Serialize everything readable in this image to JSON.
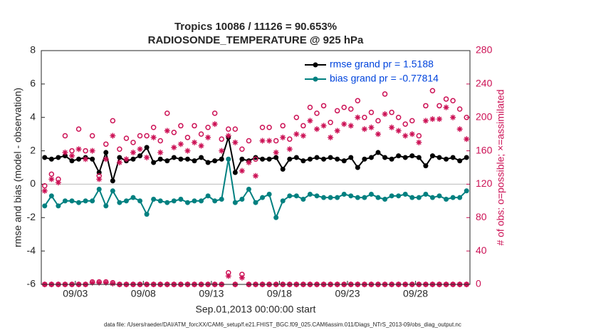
{
  "chart_data": {
    "type": "line",
    "title": "Tropics 10086 / 11126 = 90.653%",
    "subtitle": "RADIOSONDE_TEMPERATURE @ 925 hPa",
    "xlabel": "Sep.01,2013 00:00:00 start",
    "ylabel": "rmse and bias (model - observation)",
    "y2label": "# of obs: o=possible; ×=assimilated",
    "footnote": "data file: /Users/raeder/DAI/ATM_forcXX/CAM6_setup/f.e21.FHIST_BGC.f09_025.CAM6assim.011/Diags_NTrS_2013-09/obs_diag_output.nc",
    "legend": "upper right",
    "xlim": [
      0.5,
      32
    ],
    "xticks": [
      {
        "value": 3,
        "label": "09/03"
      },
      {
        "value": 8,
        "label": "09/08"
      },
      {
        "value": 13,
        "label": "09/13"
      },
      {
        "value": 18,
        "label": "09/18"
      },
      {
        "value": 23,
        "label": "09/23"
      },
      {
        "value": 28,
        "label": "09/28"
      }
    ],
    "ylim": [
      -6,
      8
    ],
    "yticks": [
      -6,
      -4,
      -2,
      0,
      2,
      4,
      6,
      8
    ],
    "y2lim": [
      0,
      280
    ],
    "y2ticks": [
      0,
      40,
      80,
      120,
      160,
      200,
      240,
      280
    ],
    "x": [
      0.75,
      1.25,
      1.75,
      2.25,
      2.75,
      3.25,
      3.75,
      4.25,
      4.75,
      5.25,
      5.75,
      6.25,
      6.75,
      7.25,
      7.75,
      8.25,
      8.75,
      9.25,
      9.75,
      10.25,
      10.75,
      11.25,
      11.75,
      12.25,
      12.75,
      13.25,
      13.75,
      14.25,
      14.75,
      15.25,
      15.75,
      16.25,
      16.75,
      17.25,
      17.75,
      18.25,
      18.75,
      19.25,
      19.75,
      20.25,
      20.75,
      21.25,
      21.75,
      22.25,
      22.75,
      23.25,
      23.75,
      24.25,
      24.75,
      25.25,
      25.75,
      26.25,
      26.75,
      27.25,
      27.75,
      28.25,
      28.75,
      29.25,
      29.75,
      30.25,
      30.75,
      31.25,
      31.75
    ],
    "series": [
      {
        "name": "rmse grand pr = 1.5188",
        "color": "#000000",
        "marker": "line-dot",
        "legend_color": "#0044dd",
        "values": [
          1.6,
          1.5,
          1.6,
          1.7,
          1.4,
          1.5,
          1.6,
          1.5,
          0.7,
          1.9,
          0.2,
          1.6,
          1.4,
          1.5,
          1.7,
          2.2,
          1.3,
          1.5,
          1.4,
          1.6,
          1.5,
          1.5,
          1.4,
          1.6,
          1.3,
          1.4,
          1.5,
          2.8,
          0.7,
          1.5,
          1.4,
          1.6,
          1.5,
          1.5,
          1.6,
          0.9,
          1.5,
          1.6,
          1.4,
          1.5,
          1.6,
          1.5,
          1.6,
          1.5,
          1.4,
          1.6,
          1.0,
          1.5,
          1.6,
          1.9,
          1.6,
          1.5,
          1.7,
          1.6,
          1.7,
          1.6,
          1.1,
          1.7,
          1.6,
          1.5,
          1.6,
          1.4,
          1.6
        ]
      },
      {
        "name": "bias grand pr = -0.77814",
        "color": "#008080",
        "marker": "line-dot",
        "legend_color": "#0044dd",
        "values": [
          -1.3,
          -0.7,
          -1.3,
          -1.0,
          -1.0,
          -1.1,
          -1.0,
          -1.0,
          -0.3,
          -1.3,
          -0.4,
          -1.1,
          -1.0,
          -0.8,
          -1.0,
          -1.8,
          -0.9,
          -1.0,
          -1.1,
          -1.0,
          -0.9,
          -1.1,
          -1.0,
          -1.0,
          -0.7,
          -1.0,
          -0.9,
          1.5,
          -1.1,
          -0.9,
          -0.3,
          -1.1,
          -0.8,
          -0.6,
          -2.0,
          -1.0,
          -0.7,
          -0.7,
          -0.9,
          -0.6,
          -0.7,
          -0.8,
          -0.8,
          -0.8,
          -0.6,
          -0.7,
          -0.8,
          -0.8,
          -0.6,
          -0.8,
          -0.9,
          -0.7,
          -0.7,
          -0.6,
          -0.8,
          -0.8,
          -0.6,
          -0.8,
          -0.7,
          -0.9,
          -0.8,
          -0.8,
          -0.4
        ]
      },
      {
        "color": "#cc1155",
        "marker": "circle",
        "axis": "y2",
        "values": [
          118,
          132,
          126,
          178,
          160,
          186,
          160,
          178,
          130,
          168,
          196,
          162,
          175,
          170,
          178,
          178,
          188,
          172,
          205,
          182,
          190,
          176,
          190,
          180,
          188,
          205,
          174,
          186,
          186,
          162,
          172,
          150,
          188,
          188,
          172,
          190,
          174,
          200,
          190,
          212,
          205,
          214,
          194,
          208,
          212,
          210,
          220,
          200,
          206,
          196,
          228,
          206,
          200,
          192,
          196,
          178,
          214,
          232,
          214,
          222,
          220,
          210,
          200
        ]
      },
      {
        "color": "#cc1155",
        "marker": "asterisk",
        "axis": "y2",
        "values": [
          112,
          126,
          122,
          158,
          154,
          162,
          150,
          160,
          126,
          150,
          178,
          146,
          150,
          158,
          162,
          152,
          176,
          158,
          184,
          164,
          168,
          160,
          170,
          166,
          176,
          192,
          160,
          178,
          170,
          136,
          146,
          130,
          172,
          172,
          158,
          176,
          162,
          180,
          178,
          196,
          186,
          190,
          176,
          184,
          192,
          190,
          200,
          186,
          188,
          180,
          204,
          188,
          184,
          178,
          180,
          170,
          196,
          198,
          198,
          212,
          200,
          186,
          174
        ]
      },
      {
        "color": "#cc1155",
        "marker": "circle",
        "axis": "y2",
        "values": [
          0,
          0,
          0,
          0,
          0,
          0,
          0,
          3,
          3,
          3,
          2,
          0,
          0,
          0,
          0,
          0,
          0,
          0,
          0,
          0,
          0,
          0,
          0,
          0,
          0,
          0,
          0,
          14,
          0,
          12,
          0,
          0,
          0,
          0,
          0,
          0,
          0,
          0,
          0,
          0,
          0,
          0,
          0,
          0,
          0,
          0,
          0,
          0,
          0,
          0,
          0,
          0,
          0,
          0,
          0,
          0,
          0,
          0,
          0,
          0,
          0,
          0,
          0
        ]
      },
      {
        "color": "#cc1155",
        "marker": "asterisk",
        "axis": "y2",
        "values": [
          0,
          0,
          0,
          0,
          0,
          0,
          0,
          2,
          2,
          2,
          1,
          0,
          0,
          0,
          0,
          0,
          0,
          0,
          0,
          0,
          0,
          0,
          0,
          0,
          0,
          0,
          0,
          10,
          0,
          8,
          0,
          0,
          0,
          0,
          0,
          0,
          0,
          0,
          0,
          0,
          0,
          0,
          0,
          0,
          0,
          0,
          0,
          0,
          0,
          0,
          0,
          0,
          0,
          0,
          0,
          0,
          0,
          0,
          0,
          0,
          0,
          0,
          0
        ]
      }
    ]
  }
}
